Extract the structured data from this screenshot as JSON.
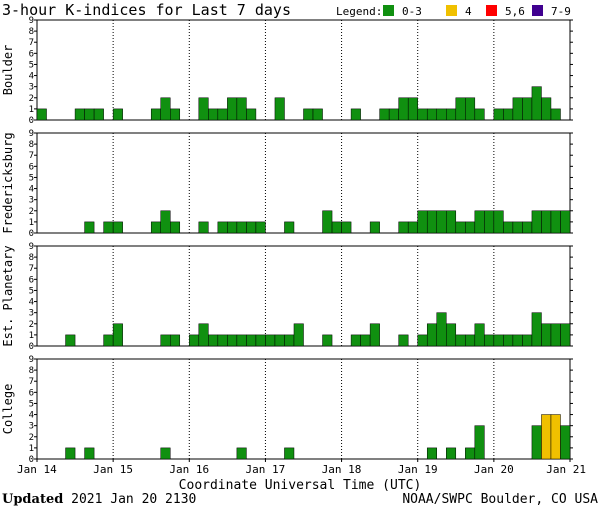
{
  "chart_data": {
    "type": "bar",
    "title": "3-hour K-indices for Last 7 days",
    "legend": {
      "title": "Legend:",
      "placement": "top-right",
      "entries": [
        {
          "label": "0-3",
          "color": "#109010"
        },
        {
          "label": "4",
          "color": "#f0c000"
        },
        {
          "label": "5,6",
          "color": "#ff0000"
        },
        {
          "label": "7-9",
          "color": "#400090"
        }
      ]
    },
    "xlabel": "Coordinate Universal Time (UTC)",
    "x_ticks": [
      "Jan 14",
      "Jan 15",
      "Jan 16",
      "Jan 17",
      "Jan 18",
      "Jan 19",
      "Jan 20",
      "Jan 21"
    ],
    "y_ticks": [
      "0",
      "1",
      "2",
      "3",
      "4",
      "5",
      "6",
      "7",
      "8",
      "9"
    ],
    "ylim": [
      0,
      9
    ],
    "bars_per_day": 8,
    "panels": [
      {
        "name": "Boulder",
        "values": [
          1,
          0,
          0,
          0,
          1,
          1,
          1,
          0,
          1,
          0,
          0,
          0,
          1,
          2,
          1,
          0,
          0,
          2,
          1,
          1,
          2,
          2,
          1,
          0,
          0,
          2,
          0,
          0,
          1,
          1,
          0,
          0,
          0,
          1,
          0,
          0,
          1,
          1,
          2,
          2,
          1,
          1,
          1,
          1,
          2,
          2,
          1,
          0,
          1,
          1,
          2,
          2,
          3,
          2,
          1,
          0
        ]
      },
      {
        "name": "Fredericksburg",
        "values": [
          0,
          0,
          0,
          0,
          0,
          1,
          0,
          1,
          1,
          0,
          0,
          0,
          1,
          2,
          1,
          0,
          0,
          1,
          0,
          1,
          1,
          1,
          1,
          1,
          0,
          0,
          1,
          0,
          0,
          0,
          2,
          1,
          1,
          0,
          0,
          1,
          0,
          0,
          1,
          1,
          2,
          2,
          2,
          2,
          1,
          1,
          2,
          2,
          2,
          1,
          1,
          1,
          2,
          2,
          2,
          2
        ]
      },
      {
        "name": "Est. Planetary",
        "values": [
          0,
          0,
          0,
          1,
          0,
          0,
          0,
          1,
          2,
          0,
          0,
          0,
          0,
          1,
          1,
          0,
          1,
          2,
          1,
          1,
          1,
          1,
          1,
          1,
          1,
          1,
          1,
          2,
          0,
          0,
          1,
          0,
          0,
          1,
          1,
          2,
          0,
          0,
          1,
          0,
          1,
          2,
          3,
          2,
          1,
          1,
          2,
          1,
          1,
          1,
          1,
          1,
          3,
          2,
          2,
          2
        ]
      },
      {
        "name": "College",
        "values": [
          0,
          0,
          0,
          1,
          0,
          1,
          0,
          0,
          0,
          0,
          0,
          0,
          0,
          1,
          0,
          0,
          0,
          0,
          0,
          0,
          0,
          1,
          0,
          0,
          0,
          0,
          1,
          0,
          0,
          0,
          0,
          0,
          0,
          0,
          0,
          0,
          0,
          0,
          0,
          0,
          0,
          1,
          0,
          1,
          0,
          1,
          3,
          0,
          0,
          0,
          0,
          0,
          3,
          4,
          4,
          3
        ]
      }
    ]
  },
  "footer": {
    "updated_label": "Updated",
    "updated_value": "2021 Jan 20 2130",
    "source": "NOAA/SWPC Boulder, CO USA"
  }
}
